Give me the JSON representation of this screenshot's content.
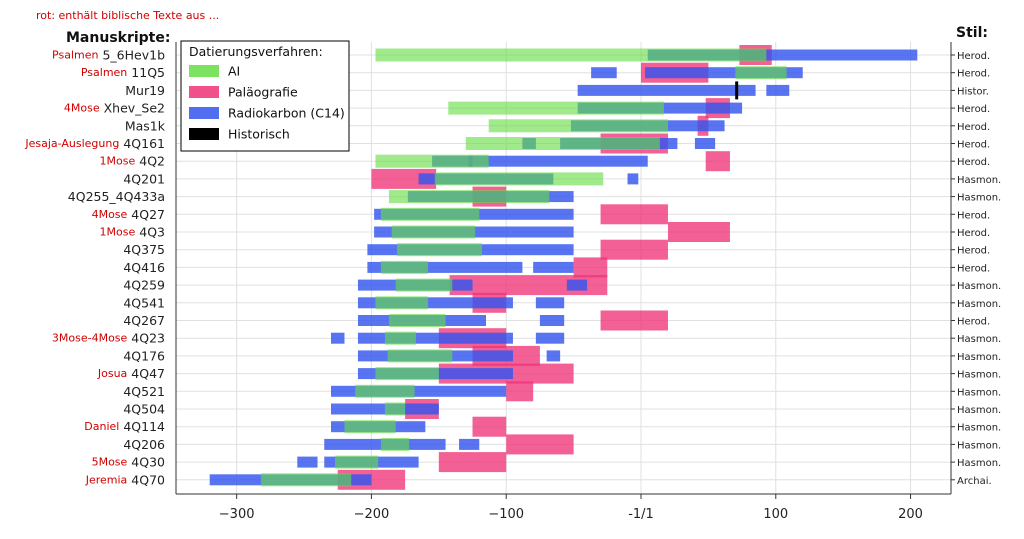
{
  "chart_data": {
    "type": "range-bar",
    "note": "rot: enthält biblische Texte aus ...",
    "left_heading": "Manuskripte:",
    "right_heading": "Stil:",
    "xlim": [
      -345,
      230
    ],
    "x_ticks": [
      {
        "value": -300,
        "label": "−300"
      },
      {
        "value": -200,
        "label": "−200"
      },
      {
        "value": -100,
        "label": "−100"
      },
      {
        "value": 0,
        "label": "-1/1"
      },
      {
        "value": 100,
        "label": "100"
      },
      {
        "value": 200,
        "label": "200"
      }
    ],
    "legend": {
      "title": "Datierungsverfahren:",
      "position": "top-left",
      "items": [
        {
          "key": "ai",
          "label": "AI",
          "color": "#66dd44"
        },
        {
          "key": "palaeo",
          "label": "Paläografie",
          "color": "#ee3377"
        },
        {
          "key": "c14",
          "label": "Radiokarbon (C14)",
          "color": "#3355ee"
        },
        {
          "key": "hist",
          "label": "Historisch",
          "color": "#000000"
        }
      ]
    },
    "colors": {
      "ai": "#66dd44",
      "palaeo": "#ee3377",
      "c14": "#3355ee",
      "hist": "#000000",
      "grid": "#e0e0e0"
    },
    "rows": [
      {
        "book": "Psalmen",
        "ms": "5_6Hev1b",
        "style": "Herod.",
        "ai": [
          [
            -197,
            93
          ]
        ],
        "palaeo": [
          [
            73,
            97
          ]
        ],
        "c14": [
          [
            5,
            205
          ]
        ],
        "hist": []
      },
      {
        "book": "Psalmen",
        "ms": "11Q5",
        "style": "Herod.",
        "ai": [
          [
            70,
            108
          ]
        ],
        "palaeo": [
          [
            0,
            50
          ]
        ],
        "c14": [
          [
            -37,
            -18
          ],
          [
            3,
            120
          ]
        ],
        "hist": []
      },
      {
        "book": "",
        "ms": "Mur19",
        "style": "Histor.",
        "ai": [],
        "palaeo": [],
        "c14": [
          [
            -47,
            85
          ],
          [
            93,
            110
          ]
        ],
        "hist": [
          [
            71,
            71
          ]
        ]
      },
      {
        "book": "4Mose",
        "ms": "Xhev_Se2",
        "style": "Herod.",
        "ai": [
          [
            -143,
            17
          ]
        ],
        "palaeo": [
          [
            48,
            66
          ]
        ],
        "c14": [
          [
            -47,
            75
          ]
        ],
        "hist": []
      },
      {
        "book": "",
        "ms": "Mas1k",
        "style": "Herod.",
        "ai": [
          [
            -113,
            20
          ]
        ],
        "palaeo": [
          [
            42,
            50
          ]
        ],
        "c14": [
          [
            -52,
            62
          ]
        ],
        "hist": []
      },
      {
        "book": "Jesaja-Auslegung",
        "ms": "4Q161",
        "style": "Herod.",
        "ai": [
          [
            -130,
            14
          ]
        ],
        "palaeo": [
          [
            -30,
            20
          ]
        ],
        "c14": [
          [
            -88,
            -78
          ],
          [
            -60,
            27
          ],
          [
            40,
            55
          ]
        ],
        "hist": []
      },
      {
        "book": "1Mose",
        "ms": "4Q2",
        "style": "Herod.",
        "ai": [
          [
            -197,
            -113
          ]
        ],
        "palaeo": [
          [
            48,
            66
          ]
        ],
        "c14": [
          [
            -155,
            -125
          ],
          [
            -128,
            5
          ]
        ],
        "hist": []
      },
      {
        "book": "",
        "ms": "4Q201",
        "style": "Hasmon.",
        "ai": [
          [
            -153,
            -28
          ]
        ],
        "palaeo": [
          [
            -200,
            -152
          ]
        ],
        "c14": [
          [
            -165,
            -65
          ],
          [
            -10,
            -2
          ]
        ],
        "hist": []
      },
      {
        "book": "",
        "ms": "4Q255_4Q433a",
        "style": "Hasmon.",
        "ai": [
          [
            -187,
            -68
          ]
        ],
        "palaeo": [
          [
            -125,
            -100
          ]
        ],
        "c14": [
          [
            -173,
            -50
          ]
        ],
        "hist": []
      },
      {
        "book": "4Mose",
        "ms": "4Q27",
        "style": "Herod.",
        "ai": [
          [
            -193,
            -120
          ]
        ],
        "palaeo": [
          [
            -30,
            20
          ]
        ],
        "c14": [
          [
            -198,
            -50
          ]
        ],
        "hist": []
      },
      {
        "book": "1Mose",
        "ms": "4Q3",
        "style": "Herod.",
        "ai": [
          [
            -185,
            -123
          ]
        ],
        "palaeo": [
          [
            20,
            66
          ]
        ],
        "c14": [
          [
            -198,
            -50
          ]
        ],
        "hist": []
      },
      {
        "book": "",
        "ms": "4Q375",
        "style": "Herod.",
        "ai": [
          [
            -181,
            -118
          ]
        ],
        "palaeo": [
          [
            -30,
            20
          ]
        ],
        "c14": [
          [
            -203,
            -50
          ]
        ],
        "hist": []
      },
      {
        "book": "",
        "ms": "4Q416",
        "style": "Herod.",
        "ai": [
          [
            -193,
            -158
          ]
        ],
        "palaeo": [
          [
            -50,
            -25
          ]
        ],
        "c14": [
          [
            -203,
            -88
          ],
          [
            -80,
            -50
          ]
        ],
        "hist": []
      },
      {
        "book": "",
        "ms": "4Q259",
        "style": "Hasmon.",
        "ai": [
          [
            -182,
            -140
          ]
        ],
        "palaeo": [
          [
            -142,
            -25
          ]
        ],
        "c14": [
          [
            -210,
            -125
          ],
          [
            -55,
            -40
          ]
        ],
        "hist": []
      },
      {
        "book": "",
        "ms": "4Q541",
        "style": "Hasmon.",
        "ai": [
          [
            -197,
            -158
          ]
        ],
        "palaeo": [
          [
            -125,
            -100
          ]
        ],
        "c14": [
          [
            -210,
            -95
          ],
          [
            -78,
            -57
          ]
        ],
        "hist": []
      },
      {
        "book": "",
        "ms": "4Q267",
        "style": "Herod.",
        "ai": [
          [
            -187,
            -145
          ]
        ],
        "palaeo": [
          [
            -30,
            20
          ]
        ],
        "c14": [
          [
            -210,
            -115
          ],
          [
            -75,
            -57
          ]
        ],
        "hist": []
      },
      {
        "book": "3Mose-4Mose",
        "ms": "4Q23",
        "style": "Hasmon.",
        "ai": [
          [
            -190,
            -167
          ]
        ],
        "palaeo": [
          [
            -150,
            -100
          ]
        ],
        "c14": [
          [
            -230,
            -220
          ],
          [
            -210,
            -95
          ],
          [
            -78,
            -57
          ]
        ],
        "hist": []
      },
      {
        "book": "",
        "ms": "4Q176",
        "style": "Hasmon.",
        "ai": [
          [
            -188,
            -140
          ]
        ],
        "palaeo": [
          [
            -125,
            -75
          ]
        ],
        "c14": [
          [
            -210,
            -95
          ],
          [
            -70,
            -60
          ]
        ],
        "hist": []
      },
      {
        "book": "Josua",
        "ms": "4Q47",
        "style": "Hasmon.",
        "ai": [
          [
            -197,
            -150
          ]
        ],
        "palaeo": [
          [
            -150,
            -50
          ]
        ],
        "c14": [
          [
            -210,
            -95
          ]
        ],
        "hist": []
      },
      {
        "book": "",
        "ms": "4Q521",
        "style": "Hasmon.",
        "ai": [
          [
            -212,
            -168
          ]
        ],
        "palaeo": [
          [
            -100,
            -80
          ]
        ],
        "c14": [
          [
            -230,
            -100
          ]
        ],
        "hist": []
      },
      {
        "book": "",
        "ms": "4Q504",
        "style": "Hasmon.",
        "ai": [
          [
            -190,
            -175
          ]
        ],
        "palaeo": [
          [
            -175,
            -150
          ]
        ],
        "c14": [
          [
            -230,
            -150
          ]
        ],
        "hist": []
      },
      {
        "book": "Daniel",
        "ms": "4Q114",
        "style": "Hasmon.",
        "ai": [
          [
            -220,
            -182
          ]
        ],
        "palaeo": [
          [
            -125,
            -100
          ]
        ],
        "c14": [
          [
            -230,
            -160
          ]
        ],
        "hist": []
      },
      {
        "book": "",
        "ms": "4Q206",
        "style": "Hasmon.",
        "ai": [
          [
            -193,
            -172
          ]
        ],
        "palaeo": [
          [
            -100,
            -50
          ]
        ],
        "c14": [
          [
            -235,
            -145
          ],
          [
            -135,
            -120
          ]
        ],
        "hist": []
      },
      {
        "book": "5Mose",
        "ms": "4Q30",
        "style": "Hasmon.",
        "ai": [
          [
            -227,
            -195
          ]
        ],
        "palaeo": [
          [
            -150,
            -100
          ]
        ],
        "c14": [
          [
            -255,
            -240
          ],
          [
            -235,
            -165
          ]
        ],
        "hist": []
      },
      {
        "book": "Jeremia",
        "ms": "4Q70",
        "style": "Archai.",
        "ai": [
          [
            -282,
            -215
          ]
        ],
        "palaeo": [
          [
            -225,
            -175
          ]
        ],
        "c14": [
          [
            -320,
            -200
          ]
        ],
        "hist": []
      }
    ]
  }
}
